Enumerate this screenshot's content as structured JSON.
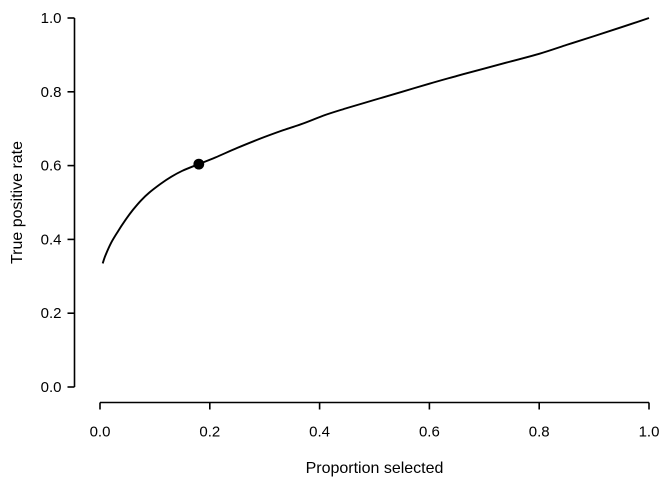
{
  "figure": {
    "background": "#ffffff",
    "stroke_color": "#000000",
    "text_color": "#000000"
  },
  "chart_data": {
    "type": "line",
    "title": "",
    "xlabel": "Proportion selected",
    "ylabel": "True positive rate",
    "xlim": [
      0,
      1
    ],
    "ylim": [
      0,
      1
    ],
    "grid": false,
    "legend": "none",
    "x_ticks": [
      "0.0",
      "0.2",
      "0.4",
      "0.6",
      "0.8",
      "1.0"
    ],
    "y_ticks": [
      "0.0",
      "0.2",
      "0.4",
      "0.6",
      "0.8",
      "1.0"
    ],
    "series": [
      {
        "name": "true-positive-rate-curve",
        "color": "#000000",
        "points": [
          [
            0.005,
            0.335
          ],
          [
            0.01,
            0.357
          ],
          [
            0.02,
            0.39
          ],
          [
            0.032,
            0.42
          ],
          [
            0.046,
            0.452
          ],
          [
            0.06,
            0.48
          ],
          [
            0.075,
            0.506
          ],
          [
            0.09,
            0.527
          ],
          [
            0.11,
            0.55
          ],
          [
            0.13,
            0.57
          ],
          [
            0.15,
            0.586
          ],
          [
            0.18,
            0.604
          ],
          [
            0.21,
            0.622
          ],
          [
            0.25,
            0.648
          ],
          [
            0.29,
            0.672
          ],
          [
            0.33,
            0.694
          ],
          [
            0.37,
            0.714
          ],
          [
            0.41,
            0.737
          ],
          [
            0.45,
            0.756
          ],
          [
            0.5,
            0.778
          ],
          [
            0.55,
            0.8
          ],
          [
            0.6,
            0.822
          ],
          [
            0.65,
            0.843
          ],
          [
            0.7,
            0.863
          ],
          [
            0.75,
            0.883
          ],
          [
            0.8,
            0.903
          ],
          [
            0.85,
            0.927
          ],
          [
            0.9,
            0.951
          ],
          [
            0.95,
            0.975
          ],
          [
            1.0,
            1.0
          ]
        ]
      }
    ],
    "marked_point": {
      "x": 0.18,
      "y": 0.604,
      "style": "filled-circle",
      "color": "#000000"
    }
  }
}
